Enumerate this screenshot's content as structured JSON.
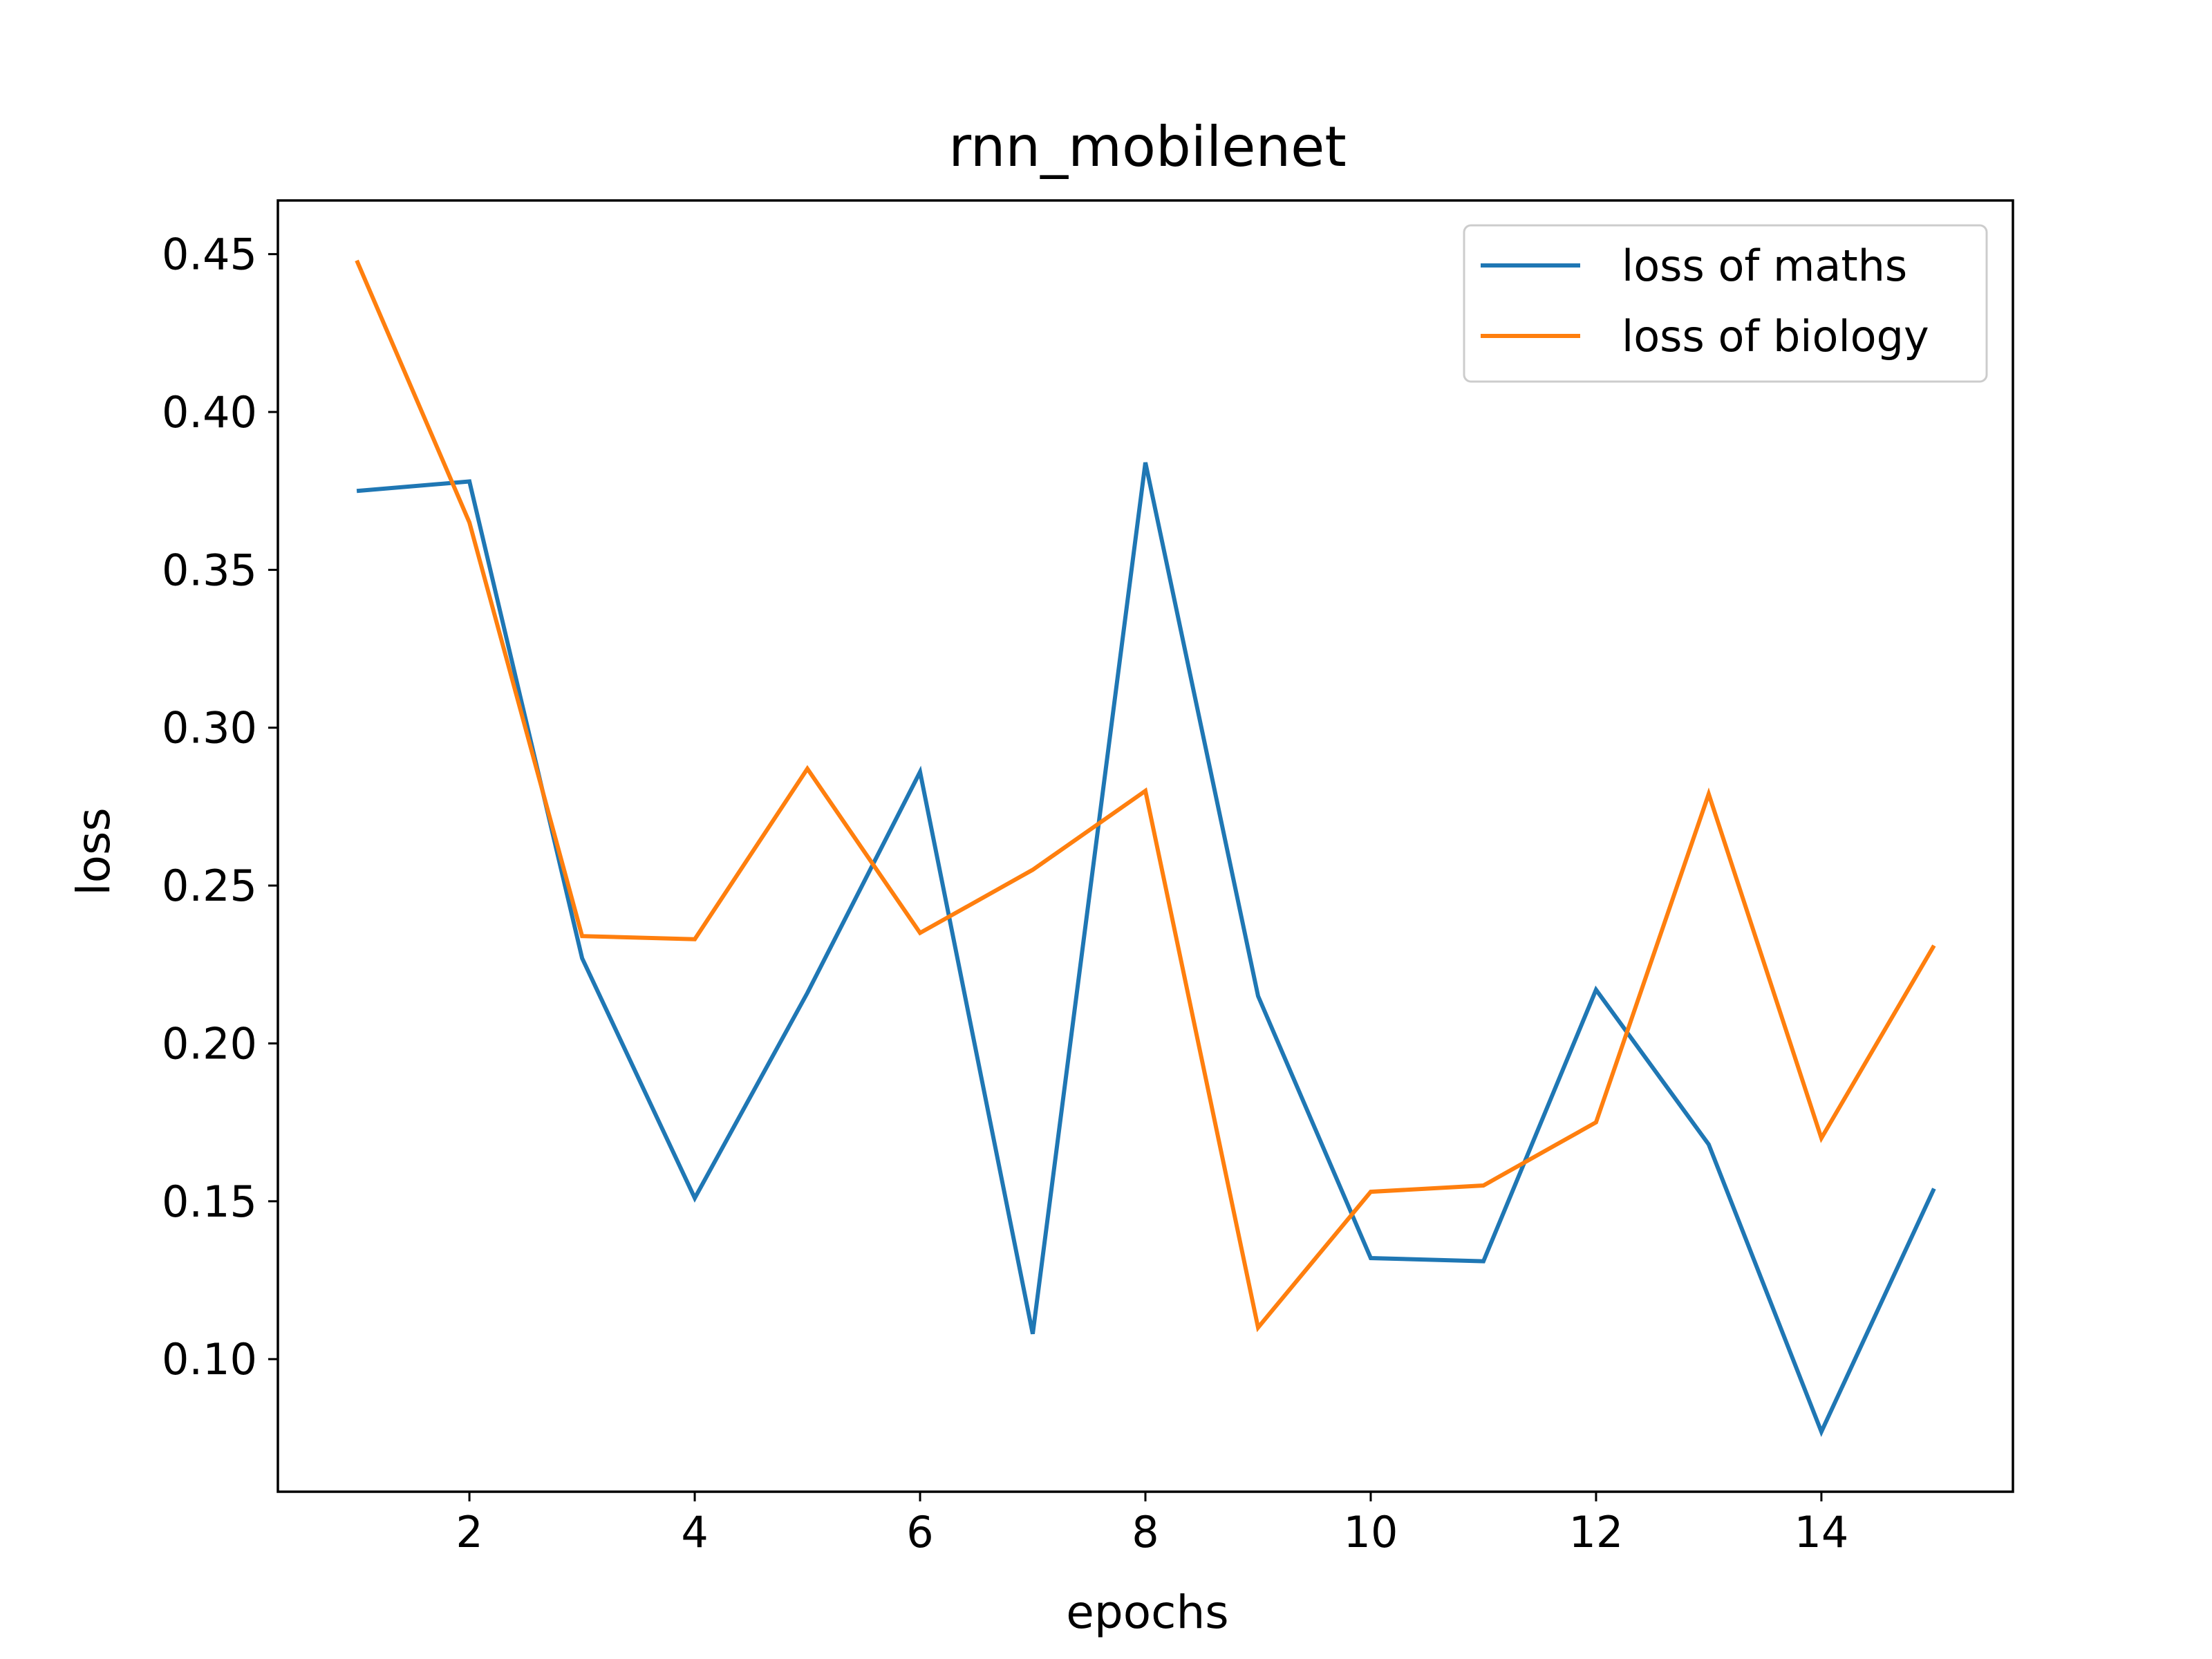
{
  "chart_data": {
    "type": "line",
    "title": "rnn_mobilenet",
    "xlabel": "epochs",
    "ylabel": "loss",
    "x": [
      1,
      2,
      3,
      4,
      5,
      6,
      7,
      8,
      9,
      10,
      11,
      12,
      13,
      14,
      15
    ],
    "xlim": [
      0.3,
      15.7
    ],
    "ylim": [
      0.058,
      0.467
    ],
    "xticks": [
      2,
      4,
      6,
      8,
      10,
      12,
      14
    ],
    "xtick_labels": [
      "2",
      "4",
      "6",
      "8",
      "10",
      "12",
      "14"
    ],
    "yticks": [
      0.1,
      0.15,
      0.2,
      0.25,
      0.3,
      0.35,
      0.4,
      0.45
    ],
    "ytick_labels": [
      "0.10",
      "0.15",
      "0.20",
      "0.25",
      "0.30",
      "0.35",
      "0.40",
      "0.45"
    ],
    "grid": false,
    "legend_position": "upper right",
    "series": [
      {
        "name": "loss of maths",
        "color": "#1f77b4",
        "values": [
          0.375,
          0.378,
          0.227,
          0.151,
          0.216,
          0.286,
          0.108,
          0.384,
          0.215,
          0.132,
          0.131,
          0.217,
          0.168,
          0.077,
          0.154
        ]
      },
      {
        "name": "loss of biology",
        "color": "#ff7f0e",
        "values": [
          0.448,
          0.365,
          0.234,
          0.233,
          0.287,
          0.235,
          0.255,
          0.28,
          0.11,
          0.153,
          0.155,
          0.175,
          0.279,
          0.17,
          0.231
        ]
      }
    ]
  }
}
